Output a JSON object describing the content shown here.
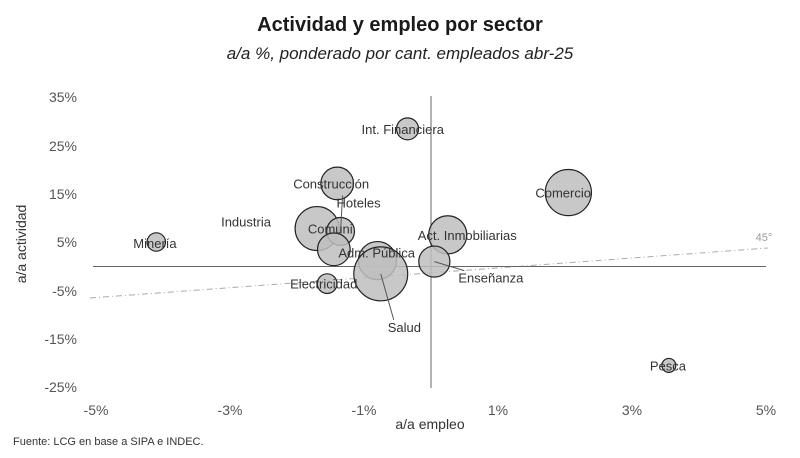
{
  "chart_data": {
    "type": "scatter",
    "title": "Actividad y empleo por sector",
    "subtitle": "a/a %, ponderado por cant. empleados abr-25",
    "xlabel": "a/a empleo",
    "ylabel": "a/a actividad",
    "xlim": [
      -5,
      5
    ],
    "ylim": [
      -27,
      35
    ],
    "x_ticks": [
      {
        "value": -5,
        "label": "-5%"
      },
      {
        "value": -3,
        "label": "-3%"
      },
      {
        "value": -1,
        "label": "-1%"
      },
      {
        "value": 1,
        "label": "1%"
      },
      {
        "value": 3,
        "label": "3%"
      },
      {
        "value": 5,
        "label": "5%"
      }
    ],
    "y_ticks": [
      {
        "value": 35,
        "label": "35%"
      },
      {
        "value": 25,
        "label": "25%"
      },
      {
        "value": 15,
        "label": "15%"
      },
      {
        "value": 5,
        "label": "5%"
      },
      {
        "value": -5,
        "label": "-5%"
      },
      {
        "value": -15,
        "label": "-15%"
      },
      {
        "value": -25,
        "label": "-25%"
      }
    ],
    "reference_line": {
      "label": "45°",
      "slope": 1
    },
    "points": [
      {
        "name": "Int. Financiera",
        "x": -0.35,
        "y": 28.5,
        "size": 1.0
      },
      {
        "name": "Construcción",
        "x": -1.4,
        "y": 17.2,
        "size": 2.2
      },
      {
        "name": "Comercio",
        "x": 2.05,
        "y": 15.3,
        "size": 4.4
      },
      {
        "name": "Industria",
        "x": -1.7,
        "y": 7.8,
        "size": 4.0
      },
      {
        "name": "Hoteles",
        "x": -1.35,
        "y": 7.2,
        "size": 1.6
      },
      {
        "name": "Act. Inmobiliarias",
        "x": 0.25,
        "y": 6.5,
        "size": 3.0
      },
      {
        "name": "Minería",
        "x": -4.1,
        "y": 5.0,
        "size": 0.7
      },
      {
        "name": "Comuni.",
        "x": -1.45,
        "y": 3.5,
        "size": 2.2
      },
      {
        "name": "Adm. Pública",
        "x": -0.8,
        "y": 1.2,
        "size": 3.0
      },
      {
        "name": "Salud",
        "x": -0.75,
        "y": -1.5,
        "size": 6.0
      },
      {
        "name": "Enseñanza",
        "x": 0.05,
        "y": 1.0,
        "size": 2.0
      },
      {
        "name": "Electricidad",
        "x": -1.55,
        "y": -3.5,
        "size": 0.8
      },
      {
        "name": "Pesca",
        "x": 3.55,
        "y": -20.5,
        "size": 0.4
      }
    ]
  },
  "source": "Fuente: LCG en base a SIPA e INDEC."
}
